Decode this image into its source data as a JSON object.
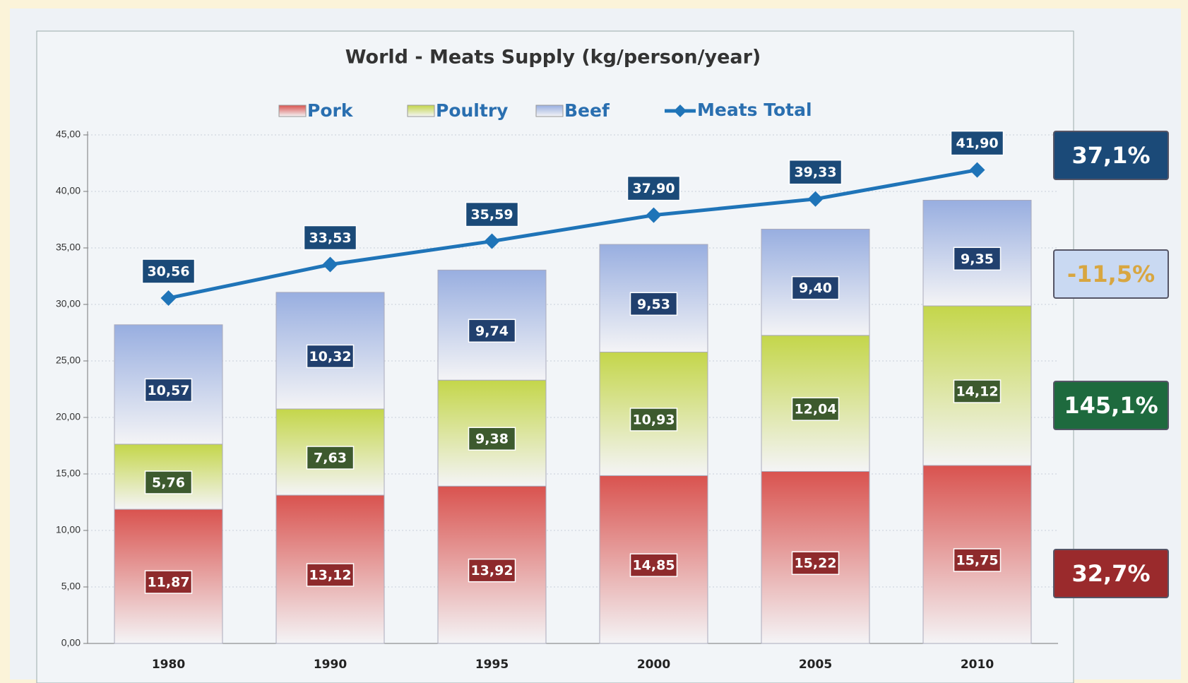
{
  "chart_data": {
    "type": "bar",
    "stacked": true,
    "title": "World - Meats Supply  (kg/person/year)",
    "categories": [
      "1980",
      "1990",
      "1995",
      "2000",
      "2005",
      "2010"
    ],
    "series": [
      {
        "name": "Pork",
        "color": "#d9534f",
        "label_color": "#8e2a2c",
        "values": [
          11.87,
          13.12,
          13.92,
          14.85,
          15.22,
          15.75
        ],
        "value_labels": [
          "11,87",
          "13,12",
          "13,92",
          "14,85",
          "15,22",
          "15,75"
        ]
      },
      {
        "name": "Poultry",
        "color": "#c4d64a",
        "label_color": "#3d5a2e",
        "values": [
          5.76,
          7.63,
          9.38,
          10.93,
          12.04,
          14.12
        ],
        "value_labels": [
          "5,76",
          "7,63",
          "9,38",
          "10,93",
          "12,04",
          "14,12"
        ]
      },
      {
        "name": "Beef",
        "color": "#98aee0",
        "label_color": "#21406e",
        "values": [
          10.57,
          10.32,
          9.74,
          9.53,
          9.4,
          9.35
        ],
        "value_labels": [
          "10,57",
          "10,32",
          "9,74",
          "9,53",
          "9,40",
          "9,35"
        ]
      },
      {
        "name": "Meats Total",
        "type": "line",
        "color": "#1f74b8",
        "label_color": "#1b4a78",
        "values": [
          30.56,
          33.53,
          35.59,
          37.9,
          39.33,
          41.9
        ],
        "value_labels": [
          "30,56",
          "33,53",
          "35,59",
          "37,90",
          "39,33",
          "41,90"
        ]
      }
    ],
    "ylim": [
      0,
      45
    ],
    "yticks": [
      {
        "value": 0,
        "label": "0,00"
      },
      {
        "value": 5,
        "label": "5,00"
      },
      {
        "value": 10,
        "label": "10,00"
      },
      {
        "value": 15,
        "label": "15,00"
      },
      {
        "value": 20,
        "label": "20,00"
      },
      {
        "value": 25,
        "label": "25,00"
      },
      {
        "value": 30,
        "label": "30,00"
      },
      {
        "value": 35,
        "label": "35,00"
      },
      {
        "value": 40,
        "label": "40,00"
      },
      {
        "value": 45,
        "label": "45,00"
      }
    ],
    "grid": true,
    "legend": "top",
    "annotations": [
      {
        "text": "37,1%",
        "color": "#1b4a78",
        "text_color": "#ffffff"
      },
      {
        "text": "-11,5%",
        "color": "#c9d9f2",
        "text_color": "#d8a640"
      },
      {
        "text": "145,1%",
        "color": "#1e6a3e",
        "text_color": "#ffffff"
      },
      {
        "text": "32,7%",
        "color": "#9a2a2c",
        "text_color": "#ffffff"
      }
    ]
  }
}
